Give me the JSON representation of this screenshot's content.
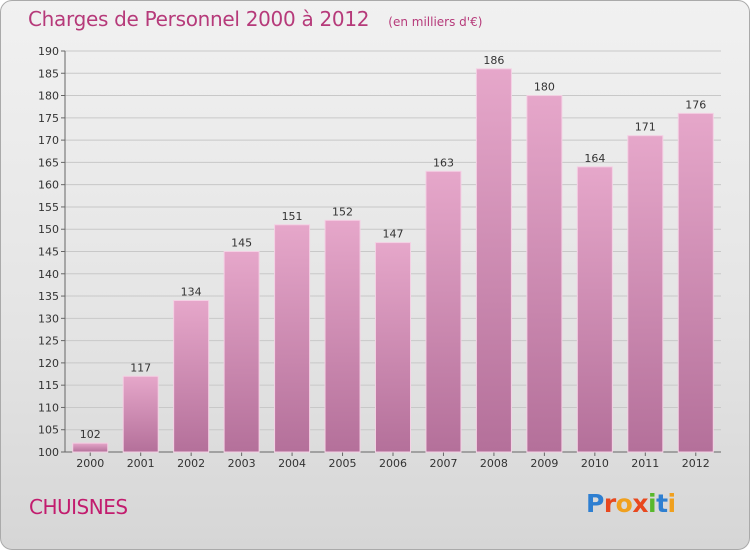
{
  "header": {
    "title": "Charges de Personnel 2000 à 2012",
    "subtitle": "(en milliers d'€)"
  },
  "footer": {
    "commune": "CHUISNES",
    "logo_text": "Proxiti",
    "logo_colors": [
      "#2e7fd1",
      "#e8481e",
      "#f0a01e",
      "#e8481e",
      "#58b82c",
      "#2e7fd1",
      "#f0a01e"
    ]
  },
  "colors": {
    "bar_top": "#e6a7ca",
    "bar_bottom": "#b4709a",
    "bar_edge": "#f4d0e4",
    "accent": "#b63a7a"
  },
  "chart_data": {
    "type": "bar",
    "title": "Charges de Personnel 2000 à 2012",
    "subtitle": "(en milliers d'€)",
    "categories": [
      "2000",
      "2001",
      "2002",
      "2003",
      "2004",
      "2005",
      "2006",
      "2007",
      "2008",
      "2009",
      "2010",
      "2011",
      "2012"
    ],
    "values": [
      102,
      117,
      134,
      145,
      151,
      152,
      147,
      163,
      186,
      180,
      164,
      171,
      176
    ],
    "ylim": [
      100,
      190
    ],
    "ytick_step": 5,
    "grid": true,
    "legend": "none"
  }
}
